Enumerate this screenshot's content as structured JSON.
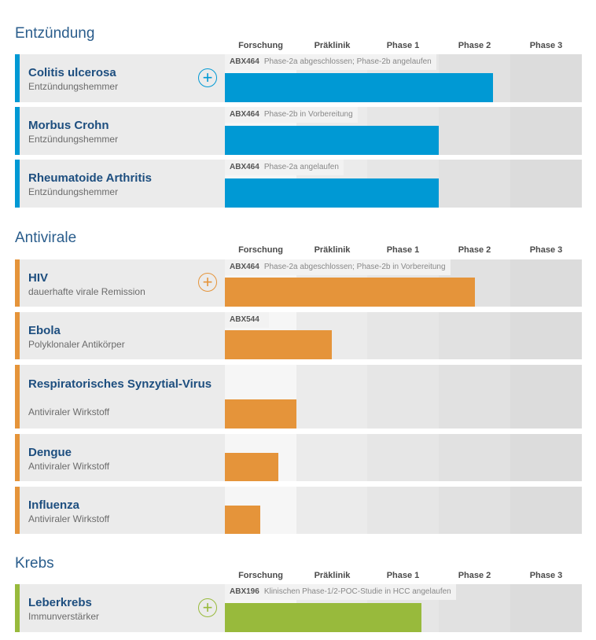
{
  "phases": [
    "Forschung",
    "Präklinik",
    "Phase 1",
    "Phase 2",
    "Phase 3"
  ],
  "colors": {
    "blue": "#0099d4",
    "orange": "#e5943a",
    "green": "#98ba3c"
  },
  "sections": [
    {
      "title": "Entzündung",
      "color": "#0099d4",
      "rows": [
        {
          "name": "Colitis ulcerosa",
          "sub": "Entzündungshemmer",
          "compound": "ABX464",
          "status": "Phase-2a abgeschlossen; Phase-2b angelaufen",
          "progress": 0.75,
          "plus": true
        },
        {
          "name": "Morbus Crohn",
          "sub": "Entzündungshemmer",
          "compound": "ABX464",
          "status": "Phase-2b in Vorbereitung",
          "progress": 0.6,
          "plus": false
        },
        {
          "name": "Rheumatoide Arthritis",
          "sub": "Entzündungshemmer",
          "compound": "ABX464",
          "status": "Phase-2a angelaufen",
          "progress": 0.6,
          "plus": false
        }
      ]
    },
    {
      "title": "Antivirale",
      "color": "#e5943a",
      "rows": [
        {
          "name": "HIV",
          "sub": "dauerhafte virale Remission",
          "compound": "ABX464",
          "status": "Phase-2a abgeschlossen; Phase-2b in Vorbereitung",
          "progress": 0.7,
          "plus": true
        },
        {
          "name": "Ebola",
          "sub": "Polyklonaler Antikörper",
          "compound": "ABX544",
          "status": "",
          "progress": 0.3,
          "plus": false
        },
        {
          "name": "Respiratorisches Synzytial-Virus",
          "sub": "Antiviraler Wirkstoff",
          "compound": "",
          "status": "",
          "progress": 0.2,
          "plus": false
        },
        {
          "name": "Dengue",
          "sub": "Antiviraler Wirkstoff",
          "compound": "",
          "status": "",
          "progress": 0.15,
          "plus": false
        },
        {
          "name": "Influenza",
          "sub": "Antiviraler Wirkstoff",
          "compound": "",
          "status": "",
          "progress": 0.1,
          "plus": false
        }
      ]
    },
    {
      "title": "Krebs",
      "color": "#98ba3c",
      "rows": [
        {
          "name": "Leberkrebs",
          "sub": "Immunverstärker",
          "compound": "ABX196",
          "status": "Klinischen Phase-1/2-POC-Studie in HCC angelaufen",
          "progress": 0.55,
          "plus": true
        }
      ]
    }
  ]
}
